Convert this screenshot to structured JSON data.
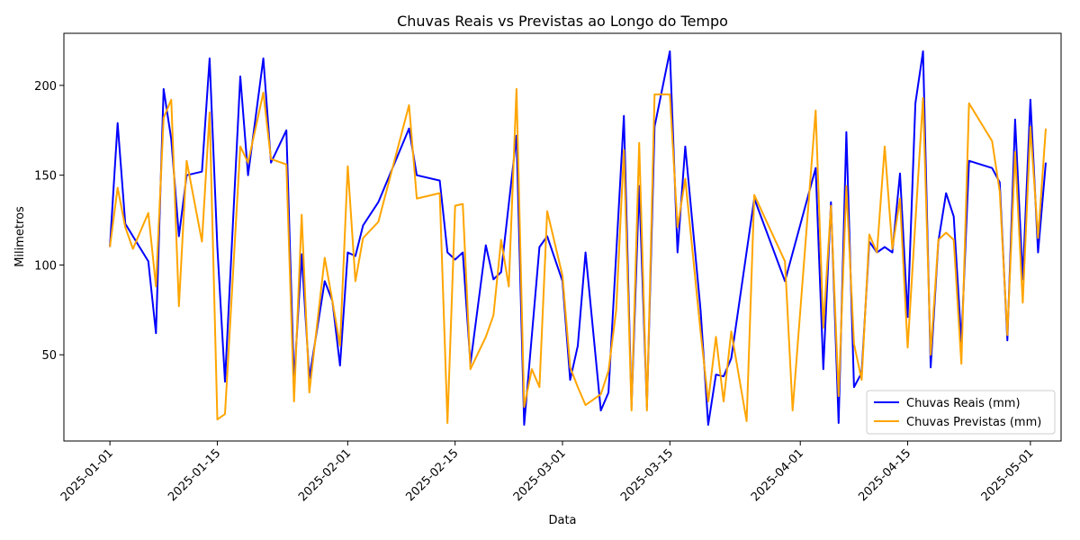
{
  "chart_data": {
    "type": "line",
    "title": "Chuvas Reais vs Previstas ao Longo do Tempo",
    "xlabel": "Data",
    "ylabel": "Milimetros",
    "xlim": [
      "2024-12-26",
      "2025-05-05"
    ],
    "ylim": [
      2,
      229
    ],
    "x_ticks": [
      "2025-01-01",
      "2025-01-15",
      "2025-02-01",
      "2025-02-15",
      "2025-03-01",
      "2025-03-15",
      "2025-04-01",
      "2025-04-15",
      "2025-05-01"
    ],
    "y_ticks": [
      50,
      100,
      150,
      200
    ],
    "grid": false,
    "legend_position": "lower-right",
    "series": [
      {
        "name": "Chuvas Reais (mm)",
        "color": "#0000ff",
        "points": [
          [
            "2025-01-01",
            110
          ],
          [
            "2025-01-02",
            179
          ],
          [
            "2025-01-03",
            123
          ],
          [
            "2025-01-04",
            116
          ],
          [
            "2025-01-06",
            102
          ],
          [
            "2025-01-07",
            62
          ],
          [
            "2025-01-08",
            198
          ],
          [
            "2025-01-09",
            170
          ],
          [
            "2025-01-10",
            116
          ],
          [
            "2025-01-11",
            150
          ],
          [
            "2025-01-13",
            152
          ],
          [
            "2025-01-14",
            215
          ],
          [
            "2025-01-15",
            110
          ],
          [
            "2025-01-16",
            35
          ],
          [
            "2025-01-18",
            205
          ],
          [
            "2025-01-19",
            150
          ],
          [
            "2025-01-21",
            215
          ],
          [
            "2025-01-22",
            157
          ],
          [
            "2025-01-24",
            175
          ],
          [
            "2025-01-25",
            35
          ],
          [
            "2025-01-26",
            106
          ],
          [
            "2025-01-27",
            37
          ],
          [
            "2025-01-29",
            91
          ],
          [
            "2025-01-30",
            80
          ],
          [
            "2025-01-31",
            44
          ],
          [
            "2025-02-01",
            107
          ],
          [
            "2025-02-02",
            105
          ],
          [
            "2025-02-03",
            122
          ],
          [
            "2025-02-05",
            135
          ],
          [
            "2025-02-09",
            176
          ],
          [
            "2025-02-10",
            150
          ],
          [
            "2025-02-13",
            147
          ],
          [
            "2025-02-14",
            107
          ],
          [
            "2025-02-15",
            103
          ],
          [
            "2025-02-16",
            107
          ],
          [
            "2025-02-17",
            45
          ],
          [
            "2025-02-19",
            111
          ],
          [
            "2025-02-20",
            92
          ],
          [
            "2025-02-21",
            96
          ],
          [
            "2025-02-23",
            172
          ],
          [
            "2025-02-24",
            11
          ],
          [
            "2025-02-26",
            110
          ],
          [
            "2025-02-27",
            116
          ],
          [
            "2025-03-01",
            91
          ],
          [
            "2025-03-02",
            36
          ],
          [
            "2025-03-03",
            55
          ],
          [
            "2025-03-04",
            107
          ],
          [
            "2025-03-06",
            19
          ],
          [
            "2025-03-07",
            29
          ],
          [
            "2025-03-09",
            183
          ],
          [
            "2025-03-10",
            21
          ],
          [
            "2025-03-11",
            144
          ],
          [
            "2025-03-12",
            21
          ],
          [
            "2025-03-13",
            177
          ],
          [
            "2025-03-15",
            219
          ],
          [
            "2025-03-16",
            107
          ],
          [
            "2025-03-17",
            166
          ],
          [
            "2025-03-19",
            75
          ],
          [
            "2025-03-20",
            11
          ],
          [
            "2025-03-21",
            39
          ],
          [
            "2025-03-22",
            38
          ],
          [
            "2025-03-23",
            48
          ],
          [
            "2025-03-26",
            137
          ],
          [
            "2025-03-30",
            91
          ],
          [
            "2025-04-03",
            154
          ],
          [
            "2025-04-04",
            42
          ],
          [
            "2025-04-05",
            135
          ],
          [
            "2025-04-06",
            12
          ],
          [
            "2025-04-07",
            174
          ],
          [
            "2025-04-08",
            32
          ],
          [
            "2025-04-09",
            40
          ],
          [
            "2025-04-10",
            113
          ],
          [
            "2025-04-11",
            107
          ],
          [
            "2025-04-12",
            110
          ],
          [
            "2025-04-13",
            107
          ],
          [
            "2025-04-14",
            151
          ],
          [
            "2025-04-15",
            71
          ],
          [
            "2025-04-16",
            190
          ],
          [
            "2025-04-17",
            219
          ],
          [
            "2025-04-18",
            43
          ],
          [
            "2025-04-19",
            113
          ],
          [
            "2025-04-20",
            140
          ],
          [
            "2025-04-21",
            127
          ],
          [
            "2025-04-22",
            57
          ],
          [
            "2025-04-23",
            158
          ],
          [
            "2025-04-26",
            154
          ],
          [
            "2025-04-27",
            146
          ],
          [
            "2025-04-28",
            58
          ],
          [
            "2025-04-29",
            181
          ],
          [
            "2025-04-30",
            92
          ],
          [
            "2025-05-01",
            192
          ],
          [
            "2025-05-02",
            107
          ],
          [
            "2025-05-03",
            157
          ]
        ]
      },
      {
        "name": "Chuvas Previstas (mm)",
        "color": "#ffa500",
        "points": [
          [
            "2025-01-01",
            110
          ],
          [
            "2025-01-02",
            143
          ],
          [
            "2025-01-03",
            121
          ],
          [
            "2025-01-04",
            109
          ],
          [
            "2025-01-06",
            129
          ],
          [
            "2025-01-07",
            88
          ],
          [
            "2025-01-08",
            182
          ],
          [
            "2025-01-09",
            192
          ],
          [
            "2025-01-10",
            77
          ],
          [
            "2025-01-11",
            158
          ],
          [
            "2025-01-13",
            113
          ],
          [
            "2025-01-14",
            185
          ],
          [
            "2025-01-15",
            14
          ],
          [
            "2025-01-16",
            17
          ],
          [
            "2025-01-18",
            166
          ],
          [
            "2025-01-19",
            157
          ],
          [
            "2025-01-21",
            196
          ],
          [
            "2025-01-22",
            159
          ],
          [
            "2025-01-24",
            156
          ],
          [
            "2025-01-25",
            24
          ],
          [
            "2025-01-26",
            128
          ],
          [
            "2025-01-27",
            29
          ],
          [
            "2025-01-29",
            104
          ],
          [
            "2025-01-30",
            80
          ],
          [
            "2025-01-31",
            55
          ],
          [
            "2025-02-01",
            155
          ],
          [
            "2025-02-02",
            91
          ],
          [
            "2025-02-03",
            115
          ],
          [
            "2025-02-05",
            124
          ],
          [
            "2025-02-09",
            189
          ],
          [
            "2025-02-10",
            137
          ],
          [
            "2025-02-13",
            140
          ],
          [
            "2025-02-14",
            12
          ],
          [
            "2025-02-15",
            133
          ],
          [
            "2025-02-16",
            134
          ],
          [
            "2025-02-17",
            42
          ],
          [
            "2025-02-19",
            60
          ],
          [
            "2025-02-20",
            72
          ],
          [
            "2025-02-21",
            114
          ],
          [
            "2025-02-22",
            88
          ],
          [
            "2025-02-23",
            198
          ],
          [
            "2025-02-24",
            21
          ],
          [
            "2025-02-25",
            42
          ],
          [
            "2025-02-26",
            32
          ],
          [
            "2025-02-27",
            130
          ],
          [
            "2025-03-01",
            94
          ],
          [
            "2025-03-02",
            43
          ],
          [
            "2025-03-03",
            32
          ],
          [
            "2025-03-04",
            22
          ],
          [
            "2025-03-06",
            28
          ],
          [
            "2025-03-07",
            41
          ],
          [
            "2025-03-08",
            75
          ],
          [
            "2025-03-09",
            164
          ],
          [
            "2025-03-10",
            19
          ],
          [
            "2025-03-11",
            168
          ],
          [
            "2025-03-12",
            19
          ],
          [
            "2025-03-13",
            195
          ],
          [
            "2025-03-15",
            195
          ],
          [
            "2025-03-16",
            121
          ],
          [
            "2025-03-17",
            148
          ],
          [
            "2025-03-19",
            63
          ],
          [
            "2025-03-20",
            24
          ],
          [
            "2025-03-21",
            60
          ],
          [
            "2025-03-22",
            24
          ],
          [
            "2025-03-23",
            63
          ],
          [
            "2025-03-25",
            13
          ],
          [
            "2025-03-26",
            139
          ],
          [
            "2025-03-30",
            102
          ],
          [
            "2025-03-31",
            19
          ],
          [
            "2025-04-03",
            186
          ],
          [
            "2025-04-04",
            65
          ],
          [
            "2025-04-05",
            133
          ],
          [
            "2025-04-06",
            27
          ],
          [
            "2025-04-07",
            144
          ],
          [
            "2025-04-08",
            56
          ],
          [
            "2025-04-09",
            36
          ],
          [
            "2025-04-10",
            117
          ],
          [
            "2025-04-11",
            107
          ],
          [
            "2025-04-12",
            166
          ],
          [
            "2025-04-13",
            109
          ],
          [
            "2025-04-14",
            137
          ],
          [
            "2025-04-15",
            54
          ],
          [
            "2025-04-17",
            193
          ],
          [
            "2025-04-18",
            50
          ],
          [
            "2025-04-19",
            114
          ],
          [
            "2025-04-20",
            118
          ],
          [
            "2025-04-21",
            114
          ],
          [
            "2025-04-22",
            45
          ],
          [
            "2025-04-23",
            190
          ],
          [
            "2025-04-26",
            169
          ],
          [
            "2025-04-27",
            141
          ],
          [
            "2025-04-28",
            61
          ],
          [
            "2025-04-29",
            163
          ],
          [
            "2025-04-30",
            79
          ],
          [
            "2025-05-01",
            177
          ],
          [
            "2025-05-02",
            115
          ],
          [
            "2025-05-03",
            176
          ]
        ]
      }
    ]
  }
}
